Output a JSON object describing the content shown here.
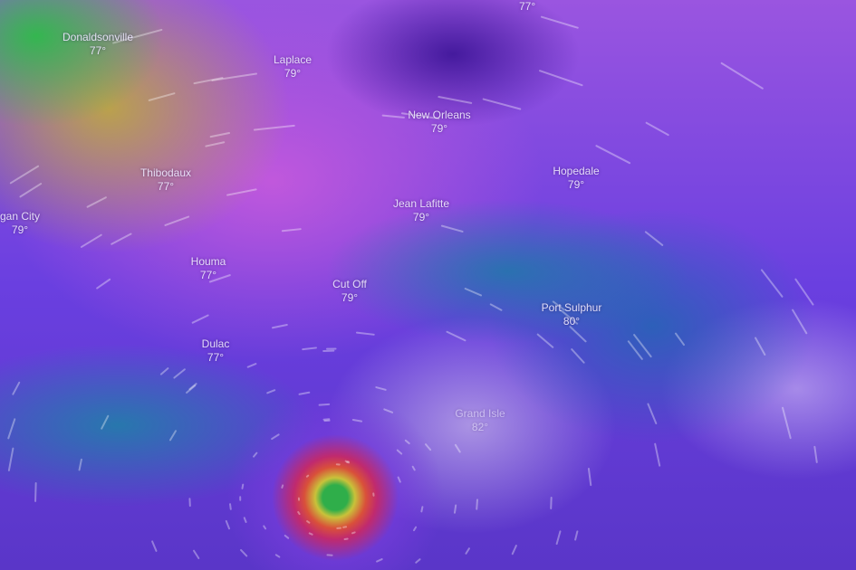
{
  "map": {
    "layer": "temperature",
    "colors": {
      "eye_center": "#2fae4a",
      "ring_red": "#d9503a",
      "base_purple": "#6a3fe0"
    },
    "cities": [
      {
        "name": "Donaldsonville",
        "temp": "77°"
      },
      {
        "name": "Laplace",
        "temp": "79°"
      },
      {
        "name": "New Orleans",
        "temp": "79°"
      },
      {
        "name": "Thibodaux",
        "temp": "77°"
      },
      {
        "name": "Hopedale",
        "temp": "79°"
      },
      {
        "name": "Jean Lafitte",
        "temp": "79°"
      },
      {
        "name": "gan City",
        "temp": "79°"
      },
      {
        "name": "Houma",
        "temp": "77°"
      },
      {
        "name": "Cut Off",
        "temp": "79°"
      },
      {
        "name": "Port Sulphur",
        "temp": "80°"
      },
      {
        "name": "Dulac",
        "temp": "77°"
      },
      {
        "name": "Grand Isle",
        "temp": "82°"
      },
      {
        "name": "",
        "temp": "77°"
      }
    ]
  }
}
